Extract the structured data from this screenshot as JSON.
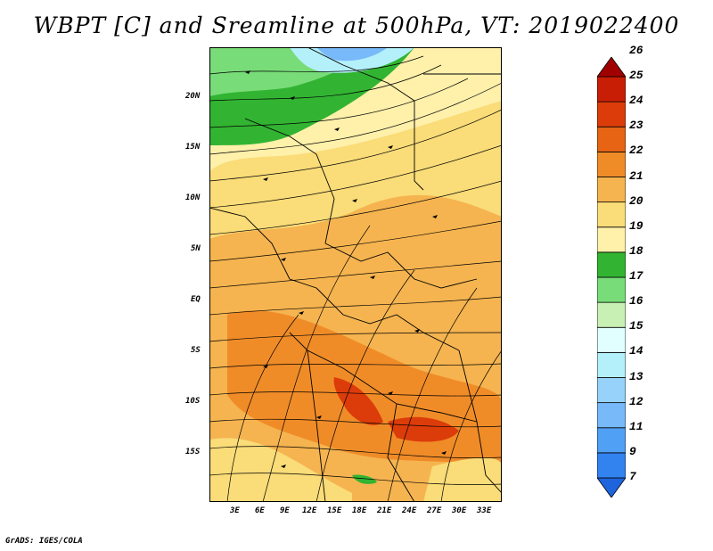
{
  "title": "WBPT [C] and Sreamline at 500hPa, VT: 2019022400",
  "footer": "GrADS: IGES/COLA",
  "map": {
    "lon_labels": [
      "3E",
      "6E",
      "9E",
      "12E",
      "15E",
      "18E",
      "21E",
      "24E",
      "27E",
      "30E",
      "33E"
    ],
    "lat_labels": [
      "20N",
      "15N",
      "10N",
      "5N",
      "EQ",
      "5S",
      "10S",
      "15S"
    ],
    "lon_range": [
      0,
      35
    ],
    "lat_range": [
      -20,
      25
    ]
  },
  "colorbar": {
    "labels": [
      "7",
      "9",
      "11",
      "12",
      "13",
      "14",
      "15",
      "16",
      "17",
      "18",
      "19",
      "20",
      "21",
      "22",
      "23",
      "24",
      "25",
      "26"
    ],
    "colors": [
      "#1e64dc",
      "#3282f0",
      "#50a0f5",
      "#78b9fa",
      "#96d2fa",
      "#b4f0fa",
      "#e1ffff",
      "#c8f0b4",
      "#78dc78",
      "#32b432",
      "#fff0aa",
      "#fadc78",
      "#f5b450",
      "#f08c28",
      "#e66414",
      "#dc3c0a",
      "#c81e05",
      "#a00000"
    ]
  }
}
